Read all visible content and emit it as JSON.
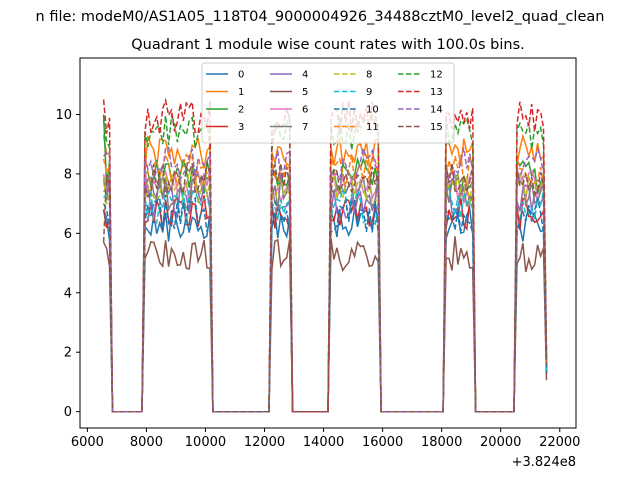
{
  "chart_data": {
    "type": "line",
    "suptitle": "n file: modeM0/AS1A05_118T04_9000004926_34488cztM0_level2_quad_clean",
    "title": "Quadrant 1 module wise count rates with 100.0s bins.",
    "xlabel": "",
    "ylabel": "",
    "offset_text": "+3.824e8",
    "xlim": [
      5750,
      22550
    ],
    "ylim": [
      -0.55,
      11.9
    ],
    "xticks": [
      6000,
      8000,
      10000,
      12000,
      14000,
      16000,
      18000,
      20000,
      22000
    ],
    "xtick_labels": [
      "6000",
      "8000",
      "10000",
      "12000",
      "14000",
      "16000",
      "18000",
      "20000",
      "22000"
    ],
    "yticks": [
      0,
      2,
      4,
      6,
      8,
      10
    ],
    "ytick_labels": [
      "0",
      "2",
      "4",
      "6",
      "8",
      "10"
    ],
    "grid": false,
    "legend_position": "top-center",
    "legend_columns": 4,
    "segments": [
      {
        "start": 6550,
        "end": 6750
      },
      {
        "start": 7950,
        "end": 10150
      },
      {
        "start": 12250,
        "end": 12850
      },
      {
        "start": 14250,
        "end": 15850
      },
      {
        "start": 18150,
        "end": 19050
      },
      {
        "start": 20550,
        "end": 21550
      }
    ],
    "series": [
      {
        "name": "0",
        "color": "#1f77b4",
        "dash": "solid",
        "level": 6.3,
        "spike": 6.8
      },
      {
        "name": "1",
        "color": "#ff7f0e",
        "dash": "solid",
        "level": 8.7,
        "spike": 9.3
      },
      {
        "name": "2",
        "color": "#2ca02c",
        "dash": "solid",
        "level": 7.9,
        "spike": 10.0
      },
      {
        "name": "3",
        "color": "#d62728",
        "dash": "solid",
        "level": 6.7,
        "spike": 6.8
      },
      {
        "name": "4",
        "color": "#9467bd",
        "dash": "solid",
        "level": 7.1,
        "spike": 7.4
      },
      {
        "name": "5",
        "color": "#8c564b",
        "dash": "solid",
        "level": 5.3,
        "spike": 5.7
      },
      {
        "name": "6",
        "color": "#e377c2",
        "dash": "solid",
        "level": 7.6,
        "spike": 8.0
      },
      {
        "name": "7",
        "color": "#7f7f7f",
        "dash": "solid",
        "level": 7.4,
        "spike": 7.8
      },
      {
        "name": "8",
        "color": "#bcbd22",
        "dash": "dashed",
        "level": 7.5,
        "spike": 7.9
      },
      {
        "name": "9",
        "color": "#17becf",
        "dash": "dashed",
        "level": 6.9,
        "spike": 7.2
      },
      {
        "name": "10",
        "color": "#1f77b4",
        "dash": "dashed",
        "level": 6.6,
        "spike": 7.0
      },
      {
        "name": "11",
        "color": "#ff7f0e",
        "dash": "dashed",
        "level": 8.1,
        "spike": 8.5
      },
      {
        "name": "12",
        "color": "#2ca02c",
        "dash": "dashed",
        "level": 9.4,
        "spike": 9.8
      },
      {
        "name": "13",
        "color": "#d62728",
        "dash": "dashed",
        "level": 9.9,
        "spike": 10.5
      },
      {
        "name": "14",
        "color": "#9467bd",
        "dash": "dashed",
        "level": 8.3,
        "spike": 8.6
      },
      {
        "name": "15",
        "color": "#8c564b",
        "dash": "dashed",
        "level": 7.8,
        "spike": 5.7
      }
    ]
  }
}
